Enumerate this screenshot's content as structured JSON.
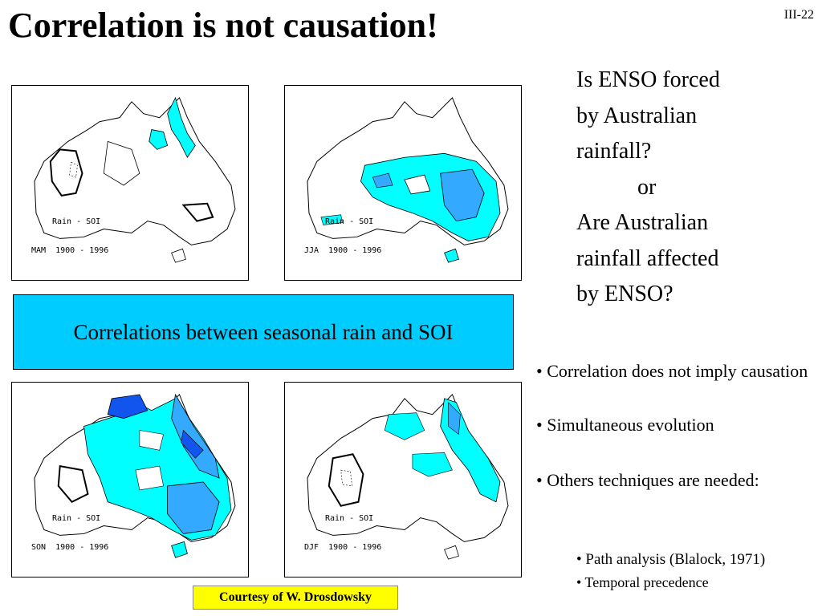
{
  "slide": {
    "title": "Correlation is not causation!",
    "slide_number": "III-22"
  },
  "maps": [
    {
      "line1": "Rain - SOI",
      "line2": "MAM  1900 - 1996"
    },
    {
      "line1": "Rain - SOI",
      "line2": "JJA  1900 - 1996"
    },
    {
      "line1": "Rain - SOI",
      "line2": "SON  1900 - 1996"
    },
    {
      "line1": "Rain - SOI",
      "line2": "DJF  1900 - 1996"
    }
  ],
  "banner": "Correlations between seasonal rain and SOI",
  "question": {
    "l1": "Is ENSO forced",
    "l2": "by Australian",
    "l3": "rainfall?",
    "l4": "or",
    "l5": "Are Australian",
    "l6": "rainfall affected",
    "l7": "by ENSO?"
  },
  "bullets": {
    "b1": "• Correlation does not imply causation",
    "b2": "• Simultaneous evolution",
    "b3": "• Others techniques are needed:"
  },
  "sub_bullets": {
    "s1": "Path analysis (Blalock, 1971)",
    "s2": "• Temporal precedence"
  },
  "credit": "Courtesy of W. Drosdowsky",
  "colors": {
    "light_cyan": "#00ffff",
    "medium_blue": "#33aaff",
    "dark_blue": "#1155ee",
    "banner": "#00ccff",
    "credit_bg": "#ffff00"
  }
}
